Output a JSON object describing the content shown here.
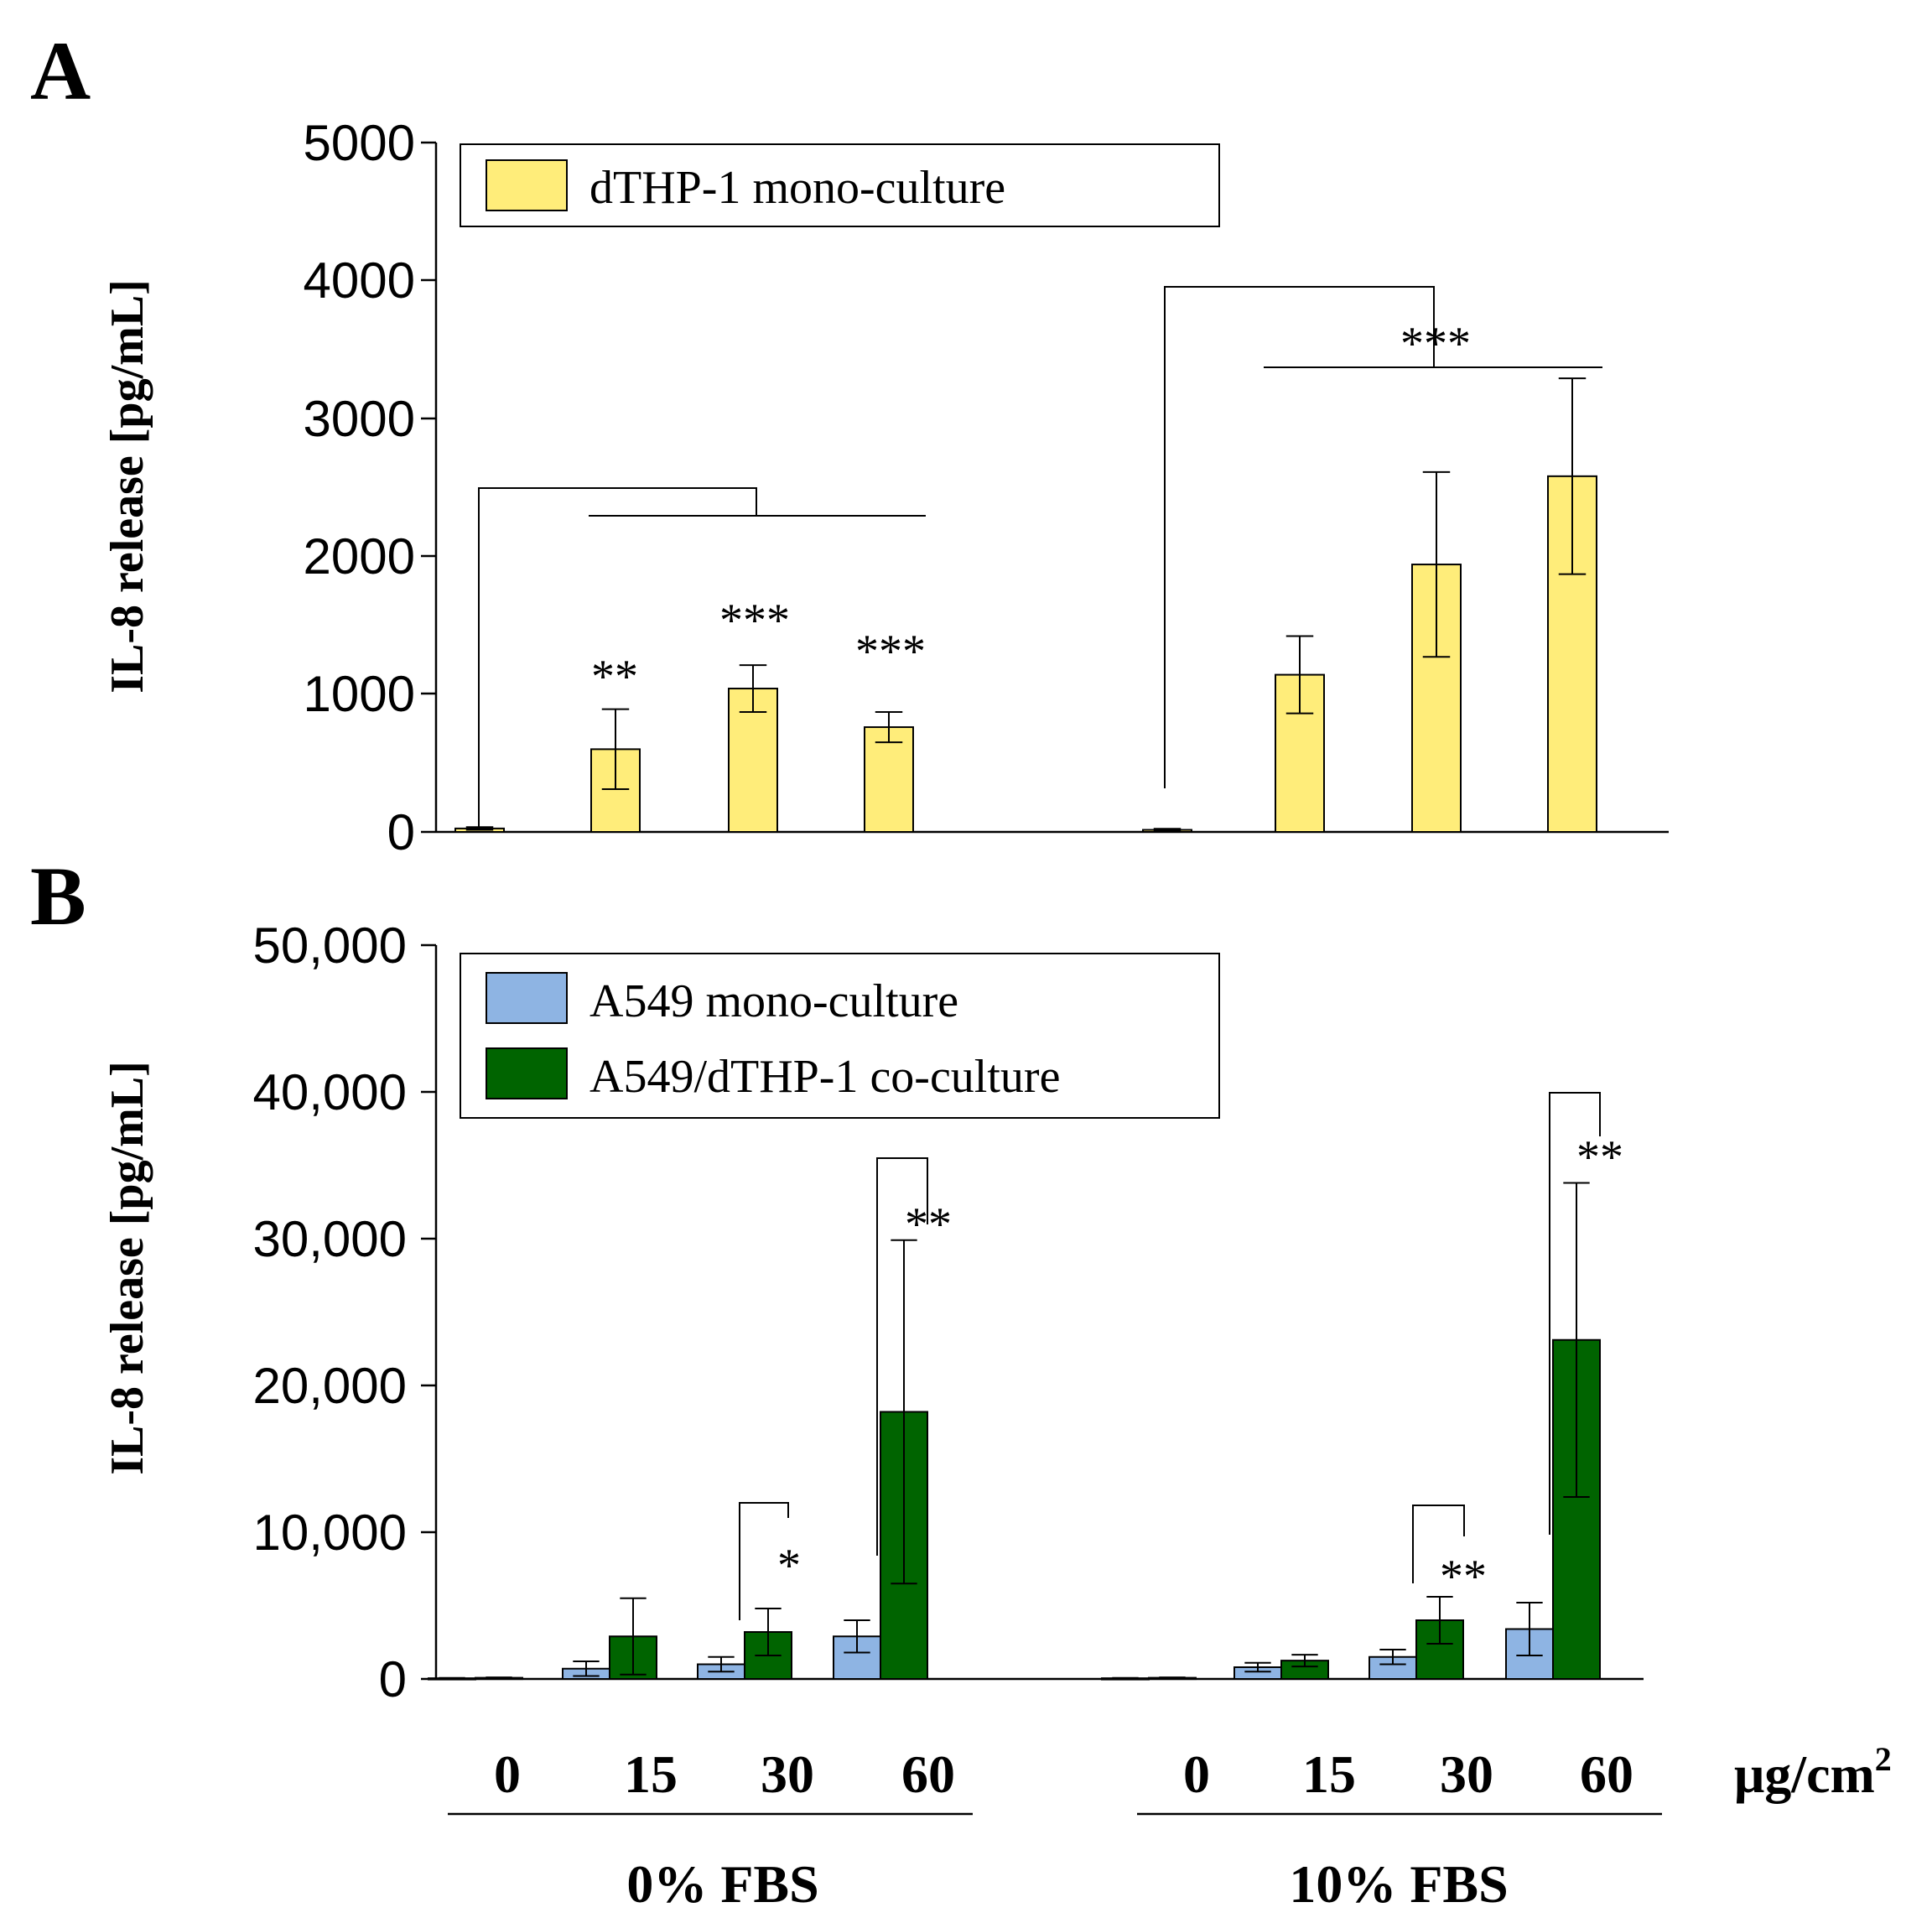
{
  "chart_data": [
    {
      "type": "bar",
      "panel_label": "A",
      "ylabel": "IL-8 release [pg/mL]",
      "ylim": [
        0,
        5000
      ],
      "yticks": [
        "0",
        "1000",
        "2000",
        "3000",
        "4000",
        "5000"
      ],
      "groups": [
        "0% FBS",
        "10% FBS"
      ],
      "categories": [
        "0",
        "15",
        "30",
        "60"
      ],
      "legend": {
        "position": "top-left",
        "entries": [
          "dTHP-1 mono-culture"
        ]
      },
      "colors": {
        "mono": "#FFED7A"
      },
      "series": [
        {
          "name": "dTHP-1 mono-culture",
          "values_0_FBS": [
            25,
            600,
            1040,
            760
          ],
          "errors_0_FBS": [
            10,
            290,
            170,
            110
          ],
          "values_10_FBS": [
            15,
            1140,
            1940,
            2580
          ],
          "errors_10_FBS": [
            8,
            280,
            670,
            710
          ]
        }
      ],
      "annotations": [
        {
          "group": "0% FBS",
          "category": "15",
          "text": "**"
        },
        {
          "group": "0% FBS",
          "category": "30",
          "text": "***"
        },
        {
          "group": "0% FBS",
          "category": "60",
          "text": "***"
        },
        {
          "group": "10% FBS",
          "category": "15-60",
          "text": "***"
        }
      ]
    },
    {
      "type": "bar",
      "panel_label": "B",
      "ylabel": "IL-8 release [pg/mL]",
      "ylim": [
        0,
        50000
      ],
      "yticks": [
        "0",
        "10,000",
        "20,000",
        "30,000",
        "40,000",
        "50,000"
      ],
      "groups": [
        "0% FBS",
        "10% FBS"
      ],
      "categories": [
        "0",
        "15",
        "30",
        "60"
      ],
      "unit": "μg/cm",
      "unit_sup": "2",
      "legend": {
        "position": "top-left",
        "entries": [
          "A549 mono-culture",
          "A549/dTHP-1 co-culture"
        ]
      },
      "colors": {
        "mono": "#8EB4E3",
        "co": "#006400"
      },
      "series": [
        {
          "name": "A549 mono-culture",
          "values_0_FBS": [
            50,
            700,
            1000,
            2900
          ],
          "errors_0_FBS": [
            20,
            500,
            500,
            1100
          ],
          "values_10_FBS": [
            50,
            800,
            1500,
            3400
          ],
          "errors_10_FBS": [
            20,
            300,
            500,
            1800
          ]
        },
        {
          "name": "A549/dTHP-1 co-culture",
          "values_0_FBS": [
            80,
            2900,
            3200,
            18200
          ],
          "errors_0_FBS": [
            30,
            2600,
            1600,
            11700
          ],
          "values_10_FBS": [
            80,
            1250,
            4000,
            23100
          ],
          "errors_10_FBS": [
            30,
            400,
            1600,
            10700
          ]
        }
      ],
      "annotations": [
        {
          "group": "0% FBS",
          "category": "30",
          "text": "*"
        },
        {
          "group": "0% FBS",
          "category": "60",
          "text": "**"
        },
        {
          "group": "10% FBS",
          "category": "30",
          "text": "**"
        },
        {
          "group": "10% FBS",
          "category": "60",
          "text": "**"
        }
      ]
    }
  ]
}
